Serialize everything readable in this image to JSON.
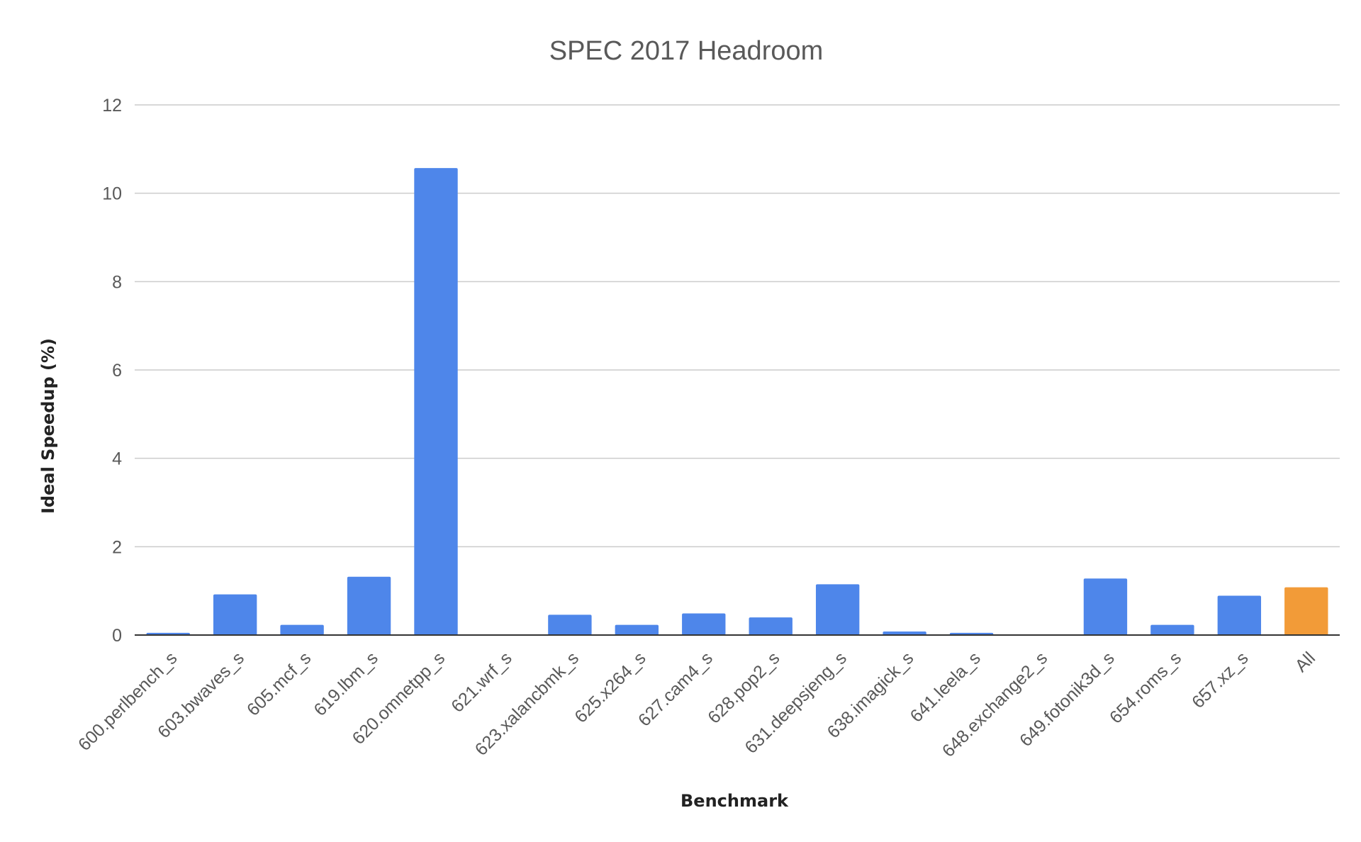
{
  "chart_data": {
    "type": "bar",
    "title": "SPEC 2017 Headroom",
    "xlabel": "Benchmark",
    "ylabel": "Ideal Speedup (%)",
    "ylim": [
      0,
      12
    ],
    "yticks": [
      0,
      2,
      4,
      6,
      8,
      10,
      12
    ],
    "grid": true,
    "legend": "none",
    "categories": [
      "600.perlbench_s",
      "603.bwaves_s",
      "605.mcf_s",
      "619.lbm_s",
      "620.omnetpp_s",
      "621.wrf_s",
      "623.xalancbmk_s",
      "625.x264_s",
      "627.cam4_s",
      "628.pop2_s",
      "631.deepsjeng_s",
      "638.imagick_s",
      "641.leela_s",
      "648.exchange2_s",
      "649.fotonik3d_s",
      "654.roms_s",
      "657.xz_s",
      "All"
    ],
    "values": [
      0.05,
      0.92,
      0.23,
      1.32,
      10.57,
      0.0,
      0.46,
      0.23,
      0.49,
      0.4,
      1.15,
      0.08,
      0.05,
      0.0,
      1.28,
      0.23,
      0.89,
      1.08
    ],
    "colors": {
      "default": "#4e86ea",
      "highlight": "#f29b38",
      "highlight_category": "All"
    }
  }
}
